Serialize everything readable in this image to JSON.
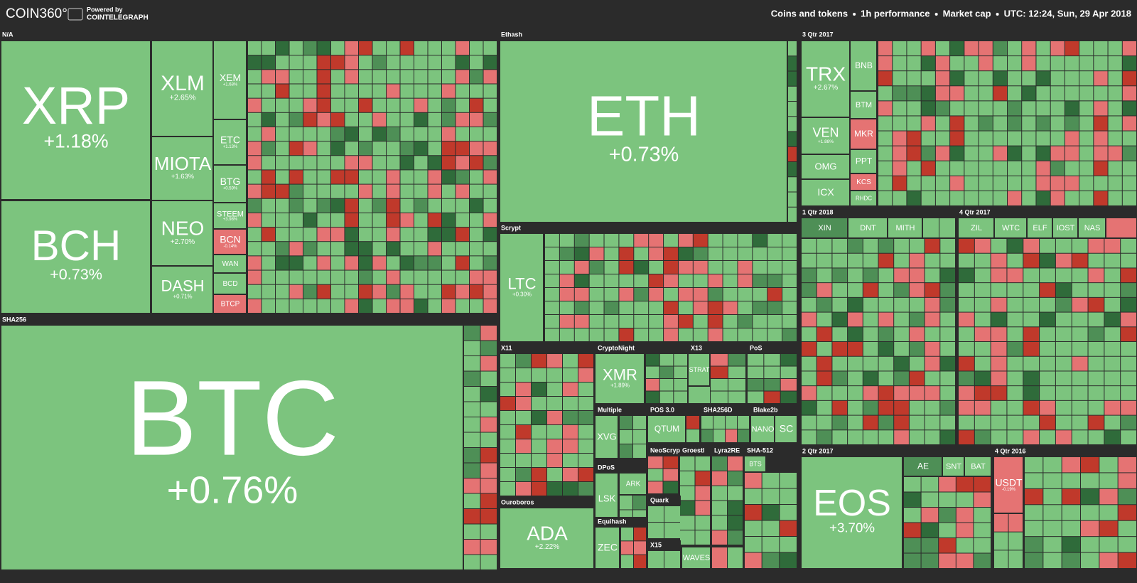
{
  "header": {
    "logo": "COIN360°",
    "powered_by": "Powered by",
    "brand": "COINTELEGRAPH",
    "filters": [
      "Coins and tokens",
      "1h performance",
      "Market cap",
      "UTC: 12:24, Sun, 29 Apr 2018"
    ]
  },
  "sections": [
    {
      "name": "N/A",
      "tiles": [
        {
          "symbol": "XRP",
          "change": "+1.18%",
          "color": "#7cc47e"
        },
        {
          "symbol": "BCH",
          "change": "+0.73%",
          "color": "#7cc47e"
        },
        {
          "symbol": "XLM",
          "change": "+2.65%",
          "color": "#7cc47e"
        },
        {
          "symbol": "MIOTA",
          "change": "+1.63%",
          "color": "#7cc47e"
        },
        {
          "symbol": "NEO",
          "change": "+2.70%",
          "color": "#7cc47e"
        },
        {
          "symbol": "DASH",
          "change": "+0.71%",
          "color": "#7cc47e"
        },
        {
          "symbol": "XEM",
          "change": "+1.68%",
          "color": "#7cc47e"
        },
        {
          "symbol": "ETC",
          "change": "+1.13%",
          "color": "#7cc47e"
        },
        {
          "symbol": "BTG",
          "change": "+0.59%",
          "color": "#7cc47e"
        },
        {
          "symbol": "STEEM",
          "change": "+3.98%",
          "color": "#7cc47e"
        },
        {
          "symbol": "BCN",
          "change": "-0.14%",
          "color": "#e57373"
        },
        {
          "symbol": "WAN",
          "color": "#7cc47e"
        },
        {
          "symbol": "BCD",
          "color": "#7cc47e"
        },
        {
          "symbol": "BTCP",
          "color": "#e57373"
        }
      ]
    },
    {
      "name": "SHA256",
      "tiles": [
        {
          "symbol": "BTC",
          "change": "+0.76%",
          "color": "#7cc47e"
        }
      ]
    },
    {
      "name": "Ethash",
      "tiles": [
        {
          "symbol": "ETH",
          "change": "+0.73%",
          "color": "#7cc47e"
        }
      ]
    },
    {
      "name": "Scrypt",
      "tiles": [
        {
          "symbol": "LTC",
          "change": "+0.30%",
          "color": "#7cc47e"
        }
      ]
    },
    {
      "name": "X11",
      "tiles": []
    },
    {
      "name": "CryptoNight",
      "tiles": [
        {
          "symbol": "XMR",
          "change": "+1.89%",
          "color": "#7cc47e"
        }
      ]
    },
    {
      "name": "X13",
      "tiles": [
        {
          "symbol": "STRAT",
          "color": "#7cc47e"
        }
      ]
    },
    {
      "name": "PoS",
      "tiles": []
    },
    {
      "name": "Ouroboros",
      "tiles": [
        {
          "symbol": "ADA",
          "change": "+2.22%",
          "color": "#7cc47e"
        }
      ]
    },
    {
      "name": "Multiple",
      "tiles": [
        {
          "symbol": "XVG",
          "color": "#7cc47e"
        }
      ]
    },
    {
      "name": "POS 3.0",
      "tiles": [
        {
          "symbol": "QTUM",
          "color": "#7cc47e"
        }
      ]
    },
    {
      "name": "SHA256D",
      "tiles": []
    },
    {
      "name": "Blake2b",
      "tiles": [
        {
          "symbol": "NANO",
          "color": "#7cc47e"
        },
        {
          "symbol": "SC",
          "color": "#7cc47e"
        }
      ]
    },
    {
      "name": "NeoScrypt",
      "tiles": []
    },
    {
      "name": "Groestl",
      "tiles": []
    },
    {
      "name": "Lyra2RE",
      "tiles": []
    },
    {
      "name": "SHA-512",
      "tiles": [
        {
          "symbol": "BTS",
          "color": "#7cc47e"
        }
      ]
    },
    {
      "name": "DPoS",
      "tiles": [
        {
          "symbol": "LSK",
          "color": "#7cc47e"
        },
        {
          "symbol": "ARK",
          "color": "#7cc47e"
        }
      ]
    },
    {
      "name": "Quark",
      "tiles": []
    },
    {
      "name": "Equihash",
      "tiles": [
        {
          "symbol": "ZEC",
          "color": "#7cc47e"
        }
      ]
    },
    {
      "name": "X15",
      "tiles": [
        {
          "symbol": "WAVES",
          "color": "#7cc47e"
        }
      ]
    },
    {
      "name": "3 Qtr 2017",
      "tiles": [
        {
          "symbol": "TRX",
          "change": "+2.67%",
          "color": "#7cc47e"
        },
        {
          "symbol": "VEN",
          "change": "+1.88%",
          "color": "#7cc47e"
        },
        {
          "symbol": "OMG",
          "color": "#7cc47e"
        },
        {
          "symbol": "ICX",
          "color": "#7cc47e"
        },
        {
          "symbol": "BNB",
          "color": "#7cc47e"
        },
        {
          "symbol": "BTM",
          "color": "#7cc47e"
        },
        {
          "symbol": "MKR",
          "color": "#e57373"
        },
        {
          "symbol": "PPT",
          "color": "#7cc47e"
        },
        {
          "symbol": "KCS",
          "color": "#e57373"
        },
        {
          "symbol": "RHDC",
          "color": "#7cc47e"
        }
      ]
    },
    {
      "name": "1 Qtr 2018",
      "tiles": [
        {
          "symbol": "XIN",
          "color": "#4e8f56"
        },
        {
          "symbol": "DNT",
          "color": "#7cc47e"
        },
        {
          "symbol": "MITH",
          "color": "#7cc47e"
        }
      ]
    },
    {
      "name": "4 Qtr 2017",
      "tiles": [
        {
          "symbol": "ZIL",
          "color": "#7cc47e"
        },
        {
          "symbol": "WTC",
          "color": "#7cc47e"
        },
        {
          "symbol": "ELF",
          "color": "#7cc47e"
        },
        {
          "symbol": "IOST",
          "color": "#7cc47e"
        },
        {
          "symbol": "NAS",
          "color": "#7cc47e"
        }
      ]
    },
    {
      "name": "2 Qtr 2017",
      "tiles": [
        {
          "symbol": "EOS",
          "change": "+3.70%",
          "color": "#7cc47e"
        },
        {
          "symbol": "AE",
          "color": "#4e8f56"
        },
        {
          "symbol": "SNT",
          "color": "#7cc47e"
        },
        {
          "symbol": "BAT",
          "color": "#7cc47e"
        }
      ]
    },
    {
      "name": "4 Qtr 2016",
      "tiles": [
        {
          "symbol": "USDT",
          "change": "-0.19%",
          "color": "#e57373"
        }
      ]
    }
  ]
}
